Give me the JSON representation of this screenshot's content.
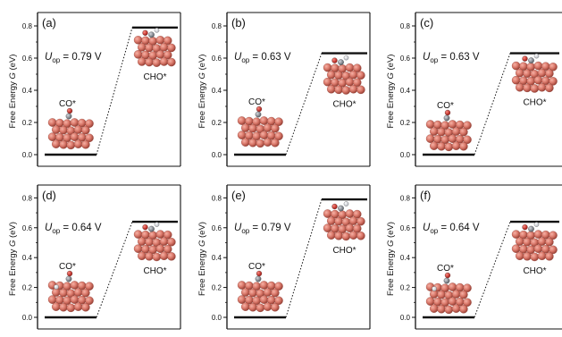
{
  "chart_data": [
    {
      "type": "free-energy-diagram",
      "panel": "(a)",
      "ylabel": "Free Energy G (eV)",
      "ylim": [
        0,
        0.85
      ],
      "yticks": [
        "0.0",
        "0.2",
        "0.4",
        "0.6",
        "0.8"
      ],
      "states": [
        {
          "label": "CO*",
          "energy": 0.0
        },
        {
          "label": "CHO*",
          "energy": 0.79
        }
      ],
      "uop_value": "0.79 V"
    },
    {
      "type": "free-energy-diagram",
      "panel": "(b)",
      "ylabel": "Free Energy G (eV)",
      "ylim": [
        0,
        0.85
      ],
      "yticks": [
        "0.0",
        "0.2",
        "0.4",
        "0.6",
        "0.8"
      ],
      "states": [
        {
          "label": "CO*",
          "energy": 0.0
        },
        {
          "label": "CHO*",
          "energy": 0.63
        }
      ],
      "uop_value": "0.63 V"
    },
    {
      "type": "free-energy-diagram",
      "panel": "(c)",
      "ylabel": "Free Energy G (eV)",
      "ylim": [
        0,
        0.85
      ],
      "yticks": [
        "0.0",
        "0.2",
        "0.4",
        "0.6",
        "0.8"
      ],
      "states": [
        {
          "label": "CO*",
          "energy": 0.0
        },
        {
          "label": "CHO*",
          "energy": 0.63
        }
      ],
      "uop_value": "0.63 V"
    },
    {
      "type": "free-energy-diagram",
      "panel": "(d)",
      "ylabel": "Free Energy G (eV)",
      "ylim": [
        0,
        0.85
      ],
      "yticks": [
        "0.0",
        "0.2",
        "0.4",
        "0.6",
        "0.8"
      ],
      "states": [
        {
          "label": "CO*",
          "energy": 0.0
        },
        {
          "label": "CHO*",
          "energy": 0.64
        }
      ],
      "uop_value": "0.64 V"
    },
    {
      "type": "free-energy-diagram",
      "panel": "(e)",
      "ylabel": "Free Energy G (eV)",
      "ylim": [
        0,
        0.85
      ],
      "yticks": [
        "0.0",
        "0.2",
        "0.4",
        "0.6",
        "0.8"
      ],
      "states": [
        {
          "label": "CO*",
          "energy": 0.0
        },
        {
          "label": "CHO*",
          "energy": 0.79
        }
      ],
      "uop_value": "0.79 V"
    },
    {
      "type": "free-energy-diagram",
      "panel": "(f)",
      "ylabel": "Free Energy G (eV)",
      "ylim": [
        0,
        0.85
      ],
      "yticks": [
        "0.0",
        "0.2",
        "0.4",
        "0.6",
        "0.8"
      ],
      "states": [
        {
          "label": "CO*",
          "energy": 0.0
        },
        {
          "label": "CHO*",
          "energy": 0.64
        }
      ],
      "uop_value": "0.64 V"
    }
  ],
  "uop_symbol": "U",
  "uop_subscript": "op",
  "colors": {
    "copper": "#d9786a",
    "copper_dark": "#a4473c",
    "carbon": "#8f939c",
    "oxygen": "#d82a22",
    "hydrogen": "#f2f2f4",
    "line": "#111111"
  }
}
